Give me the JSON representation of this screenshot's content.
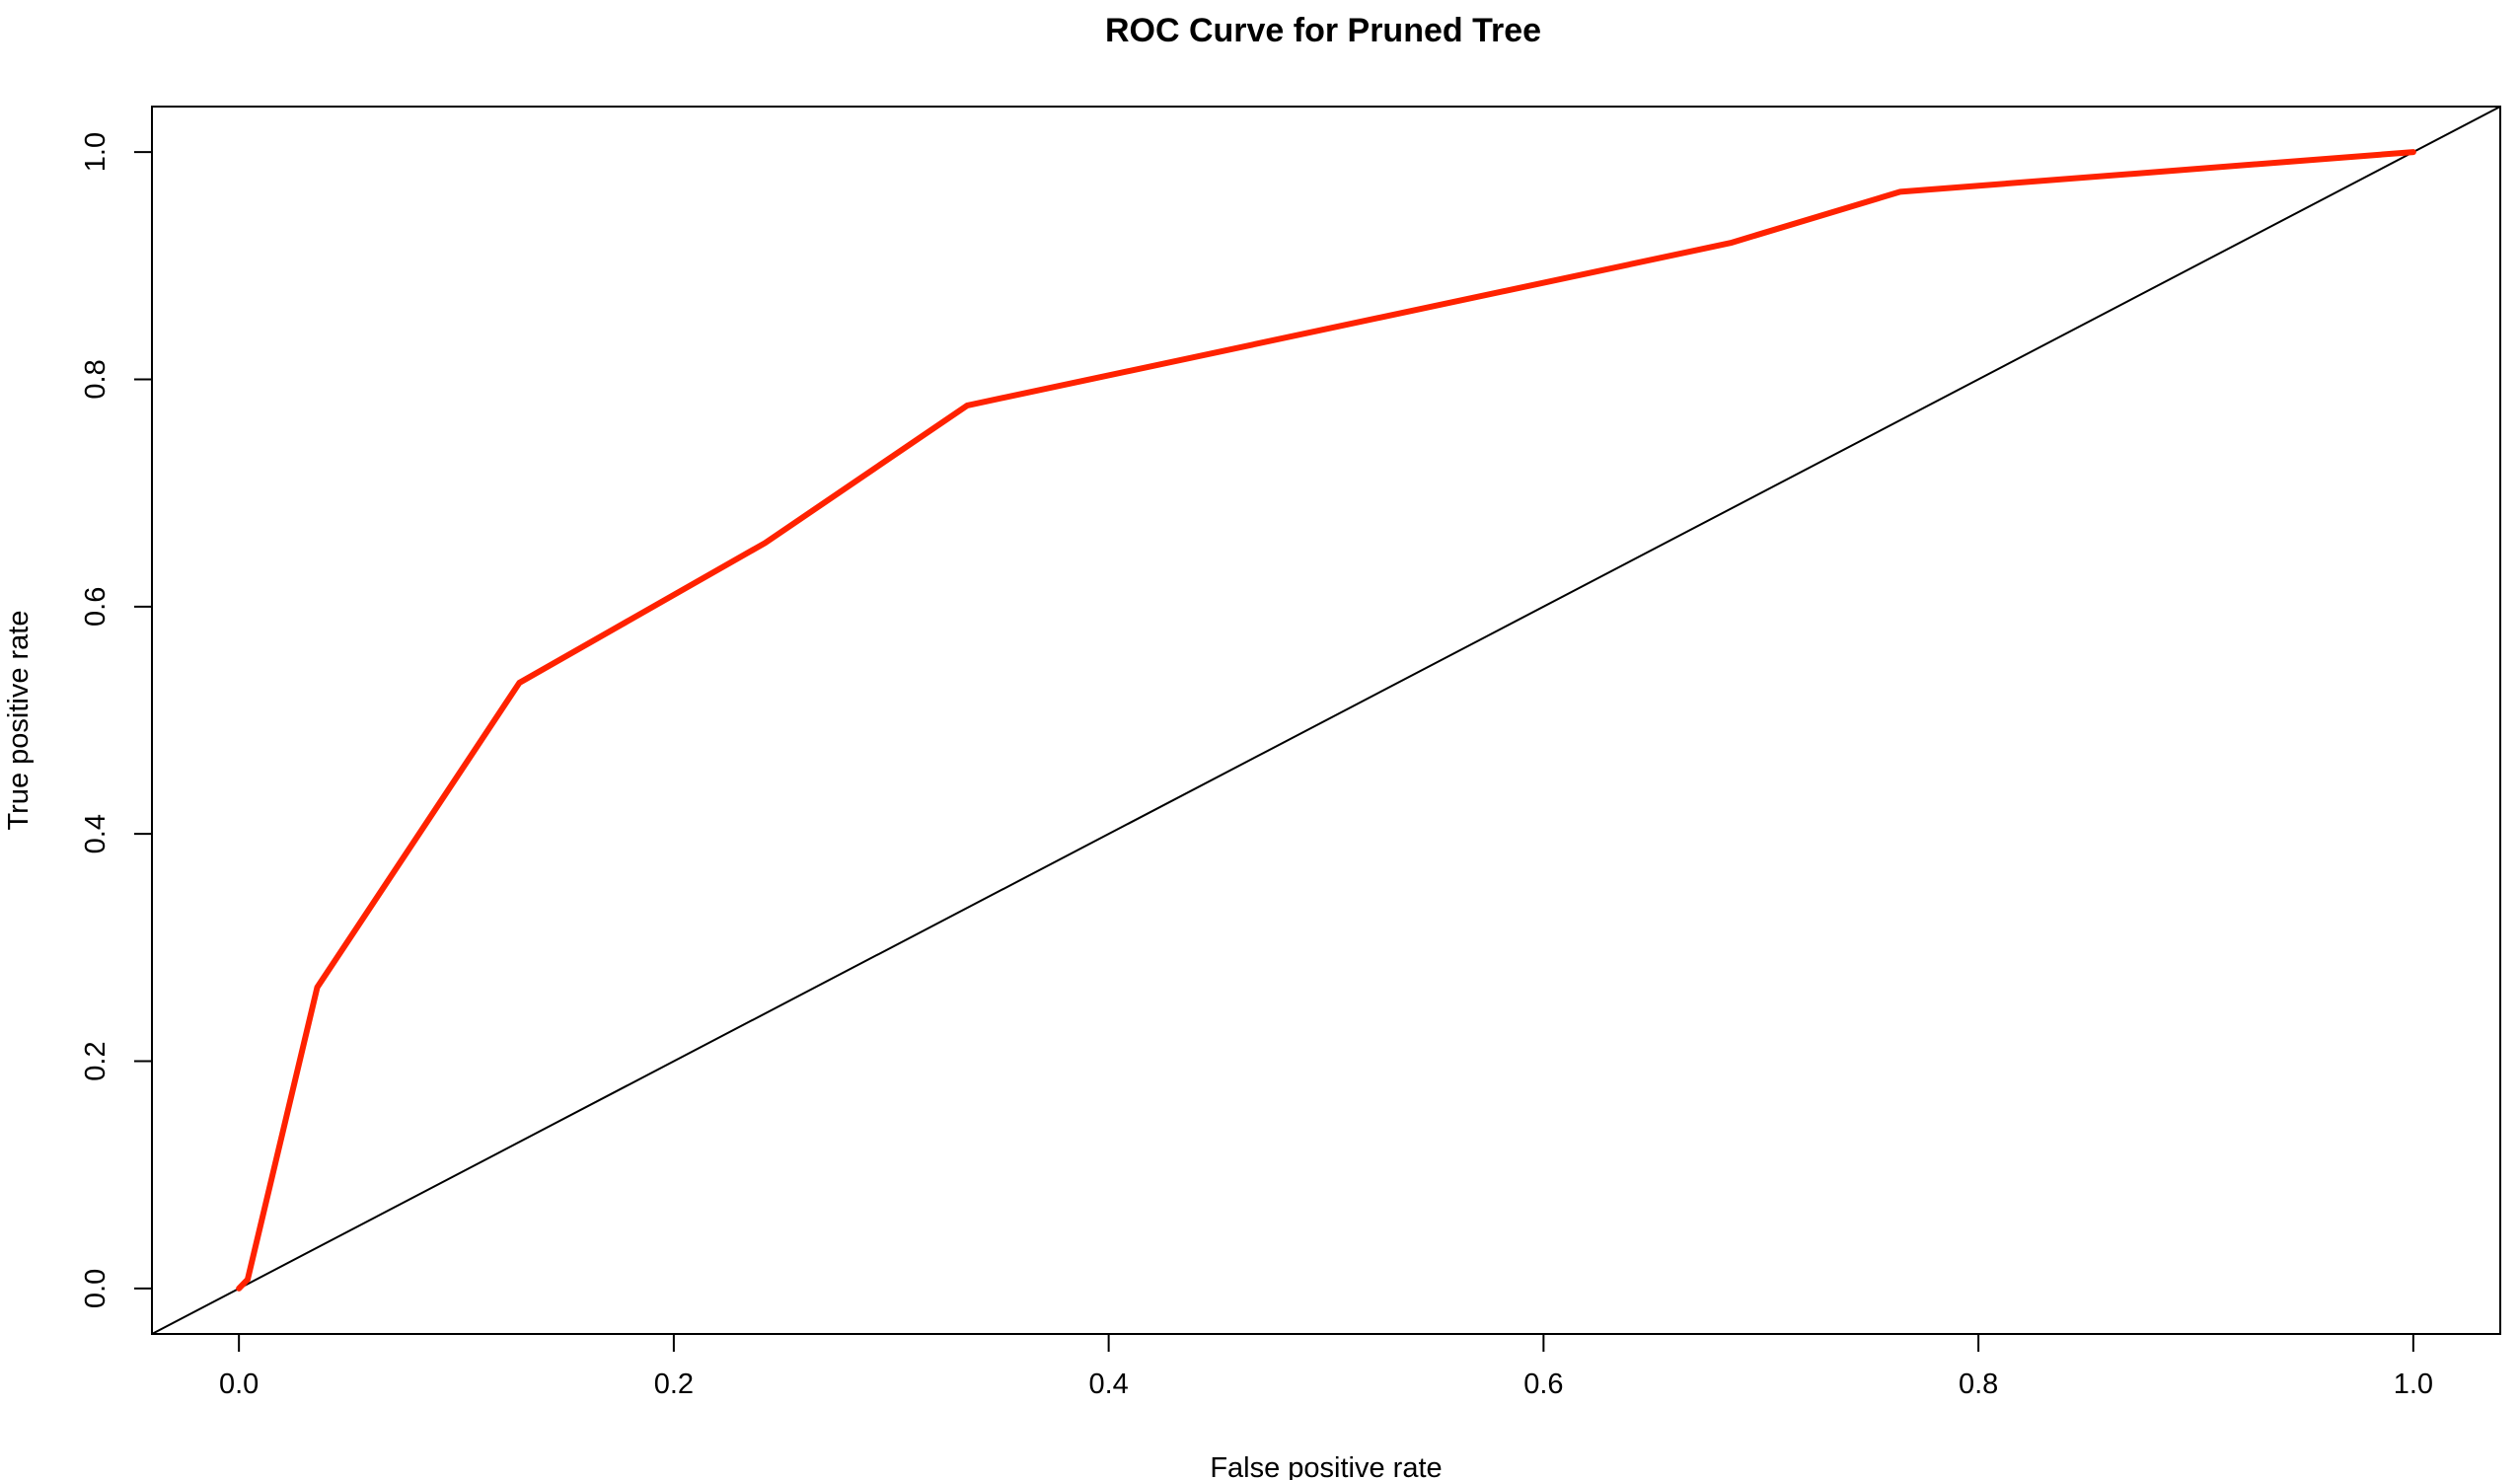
{
  "chart_data": {
    "type": "line",
    "title": "ROC Curve for Pruned Tree",
    "xlabel": "False positive rate",
    "ylabel": "True positive rate",
    "xlim": [
      -0.04,
      1.04
    ],
    "ylim": [
      -0.04,
      1.04
    ],
    "xticks": [
      0.0,
      0.2,
      0.4,
      0.6,
      0.8,
      1.0
    ],
    "yticks": [
      0.0,
      0.2,
      0.4,
      0.6,
      0.8,
      1.0
    ],
    "xtick_labels": [
      "0.0",
      "0.2",
      "0.4",
      "0.6",
      "0.8",
      "1.0"
    ],
    "ytick_labels": [
      "0.0",
      "0.2",
      "0.4",
      "0.6",
      "0.8",
      "1.0"
    ],
    "grid": false,
    "legend": "none",
    "series": [
      {
        "color": "#ff2200",
        "x": [
          0.0,
          0.004,
          0.036,
          0.129,
          0.242,
          0.335,
          0.686,
          0.764,
          1.0
        ],
        "y": [
          0.0,
          0.008,
          0.265,
          0.533,
          0.656,
          0.777,
          0.92,
          0.965,
          1.0
        ]
      }
    ],
    "reference_line": {
      "color": "#000000",
      "x": [
        -0.04,
        1.04
      ],
      "y": [
        -0.04,
        1.04
      ]
    }
  }
}
